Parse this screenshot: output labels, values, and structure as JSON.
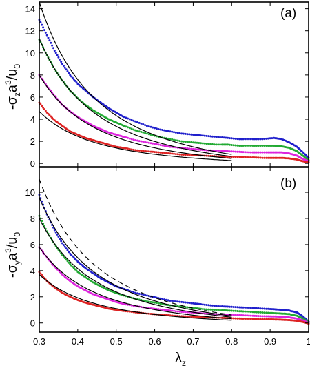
{
  "chart_data": [
    {
      "type": "scatter",
      "panel_label": "(a)",
      "ylabel": {
        "main": "-σ",
        "sub": "z",
        "rest1": "a",
        "sup": "3",
        "rest2": "/u",
        "sub2": "0"
      },
      "xlim": [
        0.3,
        1.0
      ],
      "ylim": [
        -0.3,
        14.6
      ],
      "yticks": [
        "0",
        "2",
        "4",
        "6",
        "8",
        "10",
        "12",
        "14"
      ],
      "series": [
        {
          "color": "#1f1fcc",
          "points": [
            [
              0.3,
              13.0
            ],
            [
              0.32,
              11.6
            ],
            [
              0.34,
              10.2
            ],
            [
              0.36,
              9.0
            ],
            [
              0.38,
              8.0
            ],
            [
              0.4,
              7.2
            ],
            [
              0.42,
              6.6
            ],
            [
              0.44,
              6.0
            ],
            [
              0.46,
              5.5
            ],
            [
              0.48,
              5.0
            ],
            [
              0.5,
              4.6
            ],
            [
              0.52,
              4.2
            ],
            [
              0.55,
              3.8
            ],
            [
              0.58,
              3.4
            ],
            [
              0.61,
              3.1
            ],
            [
              0.64,
              2.9
            ],
            [
              0.67,
              2.7
            ],
            [
              0.7,
              2.6
            ],
            [
              0.73,
              2.5
            ],
            [
              0.76,
              2.4
            ],
            [
              0.79,
              2.3
            ],
            [
              0.82,
              2.2
            ],
            [
              0.85,
              2.2
            ],
            [
              0.88,
              2.2
            ],
            [
              0.91,
              2.3
            ],
            [
              0.93,
              2.2
            ],
            [
              0.95,
              1.9
            ],
            [
              0.97,
              1.5
            ],
            [
              0.985,
              1.0
            ],
            [
              1.0,
              0.5
            ]
          ]
        },
        {
          "color": "#22aa33",
          "points": [
            [
              0.3,
              11.2
            ],
            [
              0.32,
              9.8
            ],
            [
              0.34,
              8.5
            ],
            [
              0.36,
              7.5
            ],
            [
              0.38,
              6.6
            ],
            [
              0.4,
              5.9
            ],
            [
              0.42,
              5.3
            ],
            [
              0.44,
              4.8
            ],
            [
              0.46,
              4.4
            ],
            [
              0.48,
              4.0
            ],
            [
              0.5,
              3.7
            ],
            [
              0.52,
              3.4
            ],
            [
              0.55,
              3.0
            ],
            [
              0.58,
              2.7
            ],
            [
              0.61,
              2.4
            ],
            [
              0.64,
              2.2
            ],
            [
              0.67,
              2.0
            ],
            [
              0.7,
              1.9
            ],
            [
              0.73,
              1.8
            ],
            [
              0.76,
              1.7
            ],
            [
              0.79,
              1.7
            ],
            [
              0.82,
              1.6
            ],
            [
              0.85,
              1.6
            ],
            [
              0.88,
              1.6
            ],
            [
              0.91,
              1.6
            ],
            [
              0.93,
              1.55
            ],
            [
              0.95,
              1.4
            ],
            [
              0.97,
              1.1
            ],
            [
              0.985,
              0.7
            ],
            [
              1.0,
              0.3
            ]
          ]
        },
        {
          "color": "#dd22dd",
          "points": [
            [
              0.3,
              8.0
            ],
            [
              0.32,
              7.0
            ],
            [
              0.34,
              6.1
            ],
            [
              0.36,
              5.3
            ],
            [
              0.38,
              4.7
            ],
            [
              0.4,
              4.2
            ],
            [
              0.42,
              3.8
            ],
            [
              0.44,
              3.4
            ],
            [
              0.46,
              3.1
            ],
            [
              0.48,
              2.8
            ],
            [
              0.5,
              2.6
            ],
            [
              0.52,
              2.4
            ],
            [
              0.55,
              2.1
            ],
            [
              0.58,
              1.9
            ],
            [
              0.61,
              1.7
            ],
            [
              0.64,
              1.5
            ],
            [
              0.67,
              1.4
            ],
            [
              0.7,
              1.3
            ],
            [
              0.73,
              1.2
            ],
            [
              0.76,
              1.15
            ],
            [
              0.79,
              1.1
            ],
            [
              0.82,
              1.05
            ],
            [
              0.85,
              1.0
            ],
            [
              0.88,
              1.0
            ],
            [
              0.91,
              1.0
            ],
            [
              0.93,
              1.0
            ],
            [
              0.95,
              0.9
            ],
            [
              0.97,
              0.7
            ],
            [
              0.985,
              0.4
            ],
            [
              1.0,
              0.2
            ]
          ]
        },
        {
          "color": "#dd2222",
          "points": [
            [
              0.3,
              5.5
            ],
            [
              0.32,
              4.6
            ],
            [
              0.34,
              3.9
            ],
            [
              0.36,
              3.4
            ],
            [
              0.38,
              2.9
            ],
            [
              0.4,
              2.6
            ],
            [
              0.42,
              2.3
            ],
            [
              0.44,
              2.1
            ],
            [
              0.46,
              1.9
            ],
            [
              0.48,
              1.7
            ],
            [
              0.5,
              1.5
            ],
            [
              0.52,
              1.4
            ],
            [
              0.55,
              1.2
            ],
            [
              0.58,
              1.1
            ],
            [
              0.61,
              1.0
            ],
            [
              0.64,
              0.9
            ],
            [
              0.67,
              0.8
            ],
            [
              0.7,
              0.75
            ],
            [
              0.73,
              0.7
            ],
            [
              0.76,
              0.65
            ],
            [
              0.79,
              0.6
            ],
            [
              0.82,
              0.6
            ],
            [
              0.85,
              0.55
            ],
            [
              0.88,
              0.5
            ],
            [
              0.91,
              0.5
            ],
            [
              0.93,
              0.5
            ],
            [
              0.95,
              0.45
            ],
            [
              0.97,
              0.35
            ],
            [
              0.985,
              0.2
            ],
            [
              1.0,
              0.1
            ]
          ]
        }
      ],
      "fit_curves": [
        {
          "style": "solid",
          "amplitude": 14.6,
          "x_end": 0.8
        },
        {
          "style": "solid",
          "amplitude": 11.3,
          "x_end": 0.8
        },
        {
          "style": "solid",
          "amplitude": 8.0,
          "x_end": 0.8
        },
        {
          "style": "solid",
          "amplitude": 4.7,
          "x_end": 0.8
        }
      ]
    },
    {
      "type": "scatter",
      "panel_label": "(b)",
      "ylabel": {
        "main": "-σ",
        "sub": "y",
        "rest1": "a",
        "sup": "3",
        "rest2": "/u",
        "sub2": "0"
      },
      "xlim": [
        0.3,
        1.0
      ],
      "ylim": [
        -0.7,
        11.9
      ],
      "yticks": [
        "0",
        "2",
        "4",
        "6",
        "8",
        "10"
      ],
      "xticks": [
        "0.3",
        "0.4",
        "0.5",
        "0.6",
        "0.7",
        "0.8",
        "0.9",
        "1"
      ],
      "xlabel": {
        "main": "λ",
        "sub": "z"
      },
      "series": [
        {
          "color": "#1f1fcc",
          "points": [
            [
              0.3,
              9.8
            ],
            [
              0.32,
              8.3
            ],
            [
              0.34,
              7.1
            ],
            [
              0.36,
              6.1
            ],
            [
              0.38,
              5.3
            ],
            [
              0.4,
              4.7
            ],
            [
              0.42,
              4.2
            ],
            [
              0.44,
              3.8
            ],
            [
              0.46,
              3.4
            ],
            [
              0.48,
              3.1
            ],
            [
              0.5,
              2.8
            ],
            [
              0.52,
              2.6
            ],
            [
              0.55,
              2.3
            ],
            [
              0.58,
              2.1
            ],
            [
              0.61,
              1.9
            ],
            [
              0.64,
              1.7
            ],
            [
              0.67,
              1.6
            ],
            [
              0.7,
              1.5
            ],
            [
              0.73,
              1.4
            ],
            [
              0.76,
              1.3
            ],
            [
              0.79,
              1.25
            ],
            [
              0.82,
              1.2
            ],
            [
              0.85,
              1.15
            ],
            [
              0.88,
              1.1
            ],
            [
              0.91,
              1.05
            ],
            [
              0.93,
              1.0
            ],
            [
              0.95,
              0.95
            ],
            [
              0.97,
              0.8
            ],
            [
              0.985,
              0.5
            ],
            [
              1.0,
              0.1
            ]
          ]
        },
        {
          "color": "#22aa33",
          "points": [
            [
              0.3,
              8.2
            ],
            [
              0.32,
              7.0
            ],
            [
              0.34,
              6.0
            ],
            [
              0.36,
              5.2
            ],
            [
              0.38,
              4.5
            ],
            [
              0.4,
              3.9
            ],
            [
              0.42,
              3.5
            ],
            [
              0.44,
              3.1
            ],
            [
              0.46,
              2.8
            ],
            [
              0.48,
              2.5
            ],
            [
              0.5,
              2.3
            ],
            [
              0.52,
              2.1
            ],
            [
              0.55,
              1.85
            ],
            [
              0.58,
              1.65
            ],
            [
              0.61,
              1.5
            ],
            [
              0.64,
              1.35
            ],
            [
              0.67,
              1.25
            ],
            [
              0.7,
              1.15
            ],
            [
              0.73,
              1.05
            ],
            [
              0.76,
              1.0
            ],
            [
              0.79,
              0.95
            ],
            [
              0.82,
              0.9
            ],
            [
              0.85,
              0.85
            ],
            [
              0.88,
              0.8
            ],
            [
              0.91,
              0.75
            ],
            [
              0.93,
              0.72
            ],
            [
              0.95,
              0.68
            ],
            [
              0.97,
              0.55
            ],
            [
              0.985,
              0.35
            ],
            [
              1.0,
              0.05
            ]
          ]
        },
        {
          "color": "#dd22dd",
          "points": [
            [
              0.3,
              5.8
            ],
            [
              0.32,
              5.0
            ],
            [
              0.34,
              4.3
            ],
            [
              0.36,
              3.7
            ],
            [
              0.38,
              3.2
            ],
            [
              0.4,
              2.8
            ],
            [
              0.42,
              2.5
            ],
            [
              0.44,
              2.2
            ],
            [
              0.46,
              2.0
            ],
            [
              0.48,
              1.8
            ],
            [
              0.5,
              1.6
            ],
            [
              0.52,
              1.45
            ],
            [
              0.55,
              1.3
            ],
            [
              0.58,
              1.15
            ],
            [
              0.61,
              1.05
            ],
            [
              0.64,
              0.95
            ],
            [
              0.67,
              0.85
            ],
            [
              0.7,
              0.8
            ],
            [
              0.73,
              0.72
            ],
            [
              0.76,
              0.68
            ],
            [
              0.79,
              0.64
            ],
            [
              0.82,
              0.6
            ],
            [
              0.85,
              0.56
            ],
            [
              0.88,
              0.52
            ],
            [
              0.91,
              0.5
            ],
            [
              0.93,
              0.47
            ],
            [
              0.95,
              0.43
            ],
            [
              0.97,
              0.33
            ],
            [
              0.985,
              0.2
            ],
            [
              1.0,
              0.0
            ]
          ]
        },
        {
          "color": "#dd2222",
          "points": [
            [
              0.3,
              3.9
            ],
            [
              0.32,
              3.2
            ],
            [
              0.34,
              2.7
            ],
            [
              0.36,
              2.3
            ],
            [
              0.38,
              2.0
            ],
            [
              0.4,
              1.75
            ],
            [
              0.42,
              1.55
            ],
            [
              0.44,
              1.4
            ],
            [
              0.46,
              1.25
            ],
            [
              0.48,
              1.1
            ],
            [
              0.5,
              1.0
            ],
            [
              0.52,
              0.92
            ],
            [
              0.55,
              0.82
            ],
            [
              0.58,
              0.72
            ],
            [
              0.61,
              0.65
            ],
            [
              0.64,
              0.58
            ],
            [
              0.67,
              0.52
            ],
            [
              0.7,
              0.48
            ],
            [
              0.73,
              0.44
            ],
            [
              0.76,
              0.4
            ],
            [
              0.79,
              0.37
            ],
            [
              0.82,
              0.34
            ],
            [
              0.85,
              0.31
            ],
            [
              0.88,
              0.29
            ],
            [
              0.91,
              0.27
            ],
            [
              0.93,
              0.25
            ],
            [
              0.95,
              0.22
            ],
            [
              0.97,
              0.16
            ],
            [
              0.985,
              0.08
            ],
            [
              1.0,
              -0.05
            ]
          ]
        }
      ],
      "fit_curves": [
        {
          "style": "dashed",
          "amplitude": 11.0,
          "x_end": 0.8
        },
        {
          "style": "solid",
          "amplitude": 9.6,
          "x_end": 0.8
        },
        {
          "style": "solid",
          "amplitude": 8.0,
          "x_end": 0.8
        },
        {
          "style": "solid",
          "amplitude": 5.8,
          "x_end": 0.8
        },
        {
          "style": "solid",
          "amplitude": 3.7,
          "x_end": 0.8
        }
      ]
    }
  ]
}
